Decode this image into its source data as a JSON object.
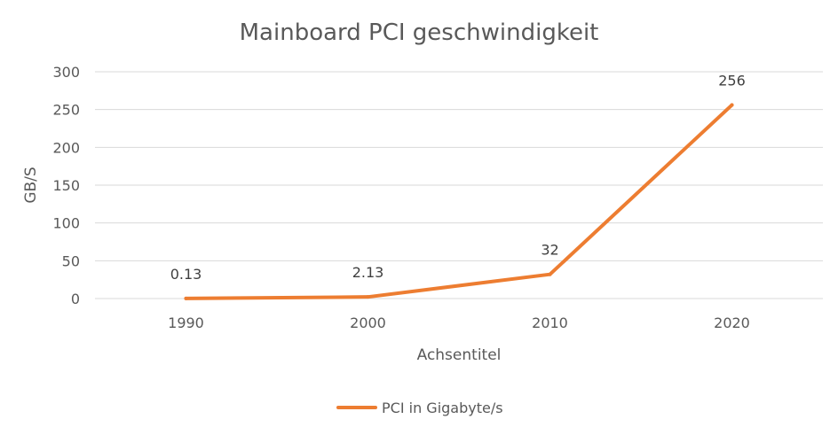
{
  "chart_data": {
    "type": "line",
    "title": "Mainboard PCI geschwindigkeit",
    "xlabel": "Achsentitel",
    "ylabel": "GB/S",
    "categories": [
      "1990",
      "2000",
      "2010",
      "2020"
    ],
    "series": [
      {
        "name": "PCI in Gigabyte/s",
        "values": [
          0.13,
          2.13,
          32,
          256
        ],
        "data_labels": [
          "0.13",
          "2.13",
          "32",
          "256"
        ],
        "color": "#ED7D31"
      }
    ],
    "ylim": [
      0,
      300
    ],
    "yticks": [
      "0",
      "50",
      "100",
      "150",
      "200",
      "250",
      "300"
    ],
    "grid": true,
    "legend": "bottom"
  }
}
